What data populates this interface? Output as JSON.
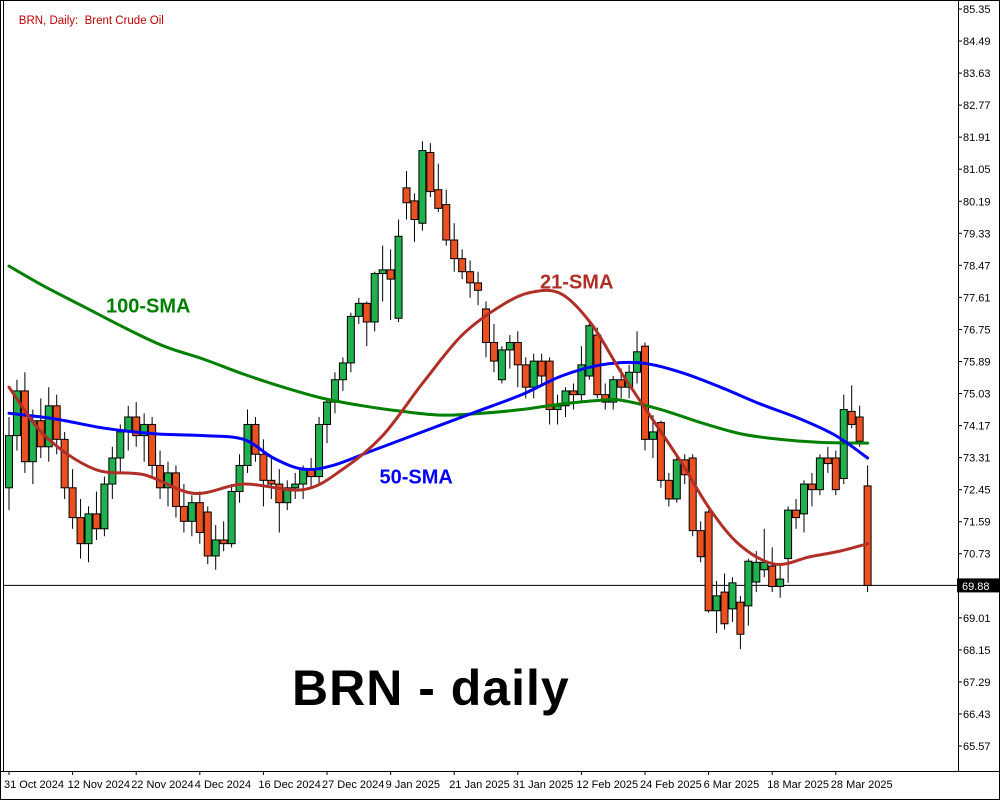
{
  "header": {
    "title": "BRN, Daily:  Brent Crude Oil",
    "title_color": "#c00000"
  },
  "chart_data": {
    "type": "candlestick",
    "symbol": "BRN",
    "timeframe": "Daily",
    "description": "Brent Crude Oil",
    "watermark": "BRN - daily",
    "grid": false,
    "current_price": "69.88",
    "current_price_value": 69.88,
    "y_axis_range": [
      65.57,
      85.35
    ],
    "y_ticks": [
      "85.35",
      "84.49",
      "83.63",
      "82.77",
      "81.91",
      "81.05",
      "80.19",
      "79.33",
      "78.47",
      "77.61",
      "76.75",
      "75.89",
      "75.03",
      "74.17",
      "73.31",
      "72.45",
      "71.59",
      "70.73",
      "69.01",
      "68.15",
      "67.29",
      "66.43",
      "65.57"
    ],
    "x_ticks": [
      {
        "i": 0,
        "label": "31 Oct 2024"
      },
      {
        "i": 8,
        "label": "12 Nov 2024"
      },
      {
        "i": 16,
        "label": "22 Nov 2024"
      },
      {
        "i": 24,
        "label": "4 Dec 2024"
      },
      {
        "i": 32,
        "label": "16 Dec 2024"
      },
      {
        "i": 40,
        "label": "27 Dec 2024"
      },
      {
        "i": 48,
        "label": "9 Jan 2025"
      },
      {
        "i": 56,
        "label": "21 Jan 2025"
      },
      {
        "i": 64,
        "label": "31 Jan 2025"
      },
      {
        "i": 72,
        "label": "12 Feb 2025"
      },
      {
        "i": 80,
        "label": "24 Feb 2025"
      },
      {
        "i": 88,
        "label": "6 Mar 2025"
      },
      {
        "i": 96,
        "label": "18 Mar 2025"
      },
      {
        "i": 104,
        "label": "28 Mar 2025"
      }
    ],
    "colors": {
      "up": "#20b14e",
      "down": "#ea5020",
      "wick": "#000000",
      "axis": "#000000",
      "bid_line": "#000000",
      "bid_label_bg": "#000000",
      "bid_label_text": "#ffffff"
    },
    "candles": [
      [
        72.5,
        74.4,
        71.9,
        73.9
      ],
      [
        73.9,
        75.4,
        73.5,
        75.1
      ],
      [
        75.1,
        75.6,
        72.9,
        73.2
      ],
      [
        73.2,
        74.6,
        72.6,
        74.3
      ],
      [
        74.3,
        74.9,
        73.3,
        73.6
      ],
      [
        73.6,
        75.2,
        73.2,
        74.7
      ],
      [
        74.7,
        75.0,
        73.4,
        73.8
      ],
      [
        73.8,
        74.0,
        72.2,
        72.5
      ],
      [
        72.5,
        73.0,
        71.4,
        71.7
      ],
      [
        71.7,
        72.2,
        70.6,
        71.0
      ],
      [
        71.0,
        72.0,
        70.5,
        71.8
      ],
      [
        71.8,
        72.4,
        71.1,
        71.4
      ],
      [
        71.4,
        72.8,
        71.2,
        72.6
      ],
      [
        72.6,
        73.6,
        72.2,
        73.3
      ],
      [
        73.3,
        74.2,
        72.9,
        74.0
      ],
      [
        74.0,
        74.7,
        73.5,
        74.4
      ],
      [
        74.4,
        74.8,
        73.6,
        73.9
      ],
      [
        73.9,
        74.5,
        73.2,
        74.2
      ],
      [
        74.2,
        74.4,
        72.8,
        73.1
      ],
      [
        73.1,
        73.5,
        72.2,
        72.5
      ],
      [
        72.5,
        73.2,
        72.0,
        72.9
      ],
      [
        72.9,
        73.1,
        71.7,
        72.0
      ],
      [
        72.0,
        72.6,
        71.3,
        71.6
      ],
      [
        71.6,
        72.3,
        71.2,
        72.1
      ],
      [
        72.1,
        72.4,
        71.0,
        71.3
      ],
      [
        71.85,
        72.0,
        70.45,
        70.67
      ],
      [
        70.67,
        71.5,
        70.3,
        71.1
      ],
      [
        71.1,
        71.6,
        70.8,
        71.0
      ],
      [
        71.0,
        72.6,
        70.9,
        72.4
      ],
      [
        72.4,
        73.4,
        72.1,
        73.1
      ],
      [
        73.1,
        74.6,
        72.9,
        74.2
      ],
      [
        74.2,
        74.4,
        73.2,
        73.4
      ],
      [
        73.4,
        73.8,
        72.0,
        72.7
      ],
      [
        72.7,
        73.3,
        72.2,
        72.6
      ],
      [
        72.6,
        73.0,
        71.3,
        72.1
      ],
      [
        72.1,
        72.7,
        71.9,
        72.5
      ],
      [
        72.5,
        72.9,
        72.2,
        72.6
      ],
      [
        72.6,
        73.1,
        72.2,
        73.0
      ],
      [
        73.0,
        73.3,
        72.5,
        72.8
      ],
      [
        72.8,
        74.4,
        72.6,
        74.2
      ],
      [
        74.2,
        74.9,
        73.7,
        74.8
      ],
      [
        74.8,
        75.6,
        74.5,
        75.4
      ],
      [
        75.4,
        76.0,
        75.1,
        75.85
      ],
      [
        75.85,
        77.2,
        75.6,
        77.1
      ],
      [
        77.1,
        77.6,
        76.9,
        77.45
      ],
      [
        77.45,
        77.5,
        76.3,
        76.95
      ],
      [
        76.95,
        78.3,
        76.7,
        78.25
      ],
      [
        78.25,
        79.0,
        77.5,
        78.35
      ],
      [
        78.35,
        78.9,
        77.0,
        78.1
      ],
      [
        77.05,
        79.7,
        76.95,
        79.25
      ],
      [
        80.55,
        81.0,
        79.7,
        80.15
      ],
      [
        80.2,
        80.4,
        79.1,
        79.7
      ],
      [
        79.6,
        81.8,
        79.4,
        81.55
      ],
      [
        81.5,
        81.75,
        80.3,
        80.45
      ],
      [
        80.5,
        81.2,
        79.9,
        80.0
      ],
      [
        80.1,
        80.5,
        79.0,
        79.15
      ],
      [
        79.15,
        79.6,
        78.3,
        78.65
      ],
      [
        78.65,
        78.9,
        78.1,
        78.3
      ],
      [
        78.3,
        78.6,
        77.6,
        78.0
      ],
      [
        78.0,
        78.3,
        77.4,
        77.8
      ],
      [
        77.3,
        77.5,
        76.0,
        76.4
      ],
      [
        76.4,
        76.9,
        75.6,
        75.9
      ],
      [
        75.4,
        76.3,
        75.3,
        76.2
      ],
      [
        76.2,
        76.6,
        75.7,
        76.4
      ],
      [
        76.4,
        76.7,
        75.2,
        75.8
      ],
      [
        75.8,
        76.0,
        74.9,
        75.2
      ],
      [
        75.2,
        76.1,
        74.9,
        75.9
      ],
      [
        75.9,
        76.1,
        75.3,
        75.5
      ],
      [
        75.9,
        76.0,
        74.2,
        74.6
      ],
      [
        74.6,
        75.0,
        74.2,
        74.7
      ],
      [
        74.7,
        75.2,
        74.4,
        75.1
      ],
      [
        75.1,
        75.3,
        74.6,
        75.0
      ],
      [
        75.0,
        76.3,
        74.8,
        75.8
      ],
      [
        75.5,
        77.0,
        75.4,
        76.85
      ],
      [
        76.6,
        76.8,
        74.9,
        75.0
      ],
      [
        75.0,
        75.3,
        74.6,
        74.8
      ],
      [
        74.8,
        75.5,
        74.6,
        75.4
      ],
      [
        75.4,
        75.7,
        74.9,
        75.2
      ],
      [
        75.2,
        75.8,
        74.9,
        75.6
      ],
      [
        75.6,
        76.7,
        75.3,
        76.15
      ],
      [
        76.3,
        76.4,
        73.5,
        73.8
      ],
      [
        73.8,
        74.45,
        73.3,
        74.0
      ],
      [
        74.25,
        74.3,
        72.5,
        72.7
      ],
      [
        72.7,
        72.9,
        72.0,
        72.2
      ],
      [
        72.2,
        73.4,
        72.1,
        73.25
      ],
      [
        73.25,
        73.4,
        72.6,
        72.85
      ],
      [
        73.3,
        73.4,
        71.2,
        71.35
      ],
      [
        71.35,
        71.6,
        70.5,
        70.65
      ],
      [
        71.85,
        71.9,
        69.15,
        69.2
      ],
      [
        69.2,
        70.0,
        68.6,
        69.6
      ],
      [
        69.7,
        70.2,
        68.7,
        68.85
      ],
      [
        69.25,
        70.1,
        68.9,
        69.95
      ],
      [
        69.43,
        69.6,
        68.17,
        68.57
      ],
      [
        69.33,
        70.6,
        68.8,
        70.53
      ],
      [
        69.97,
        70.8,
        69.7,
        70.5
      ],
      [
        70.3,
        71.4,
        70.1,
        70.5
      ],
      [
        70.4,
        70.9,
        69.7,
        69.85
      ],
      [
        69.85,
        70.45,
        69.55,
        70.05
      ],
      [
        70.6,
        72.0,
        69.95,
        71.9
      ],
      [
        71.9,
        72.2,
        71.4,
        71.7
      ],
      [
        71.8,
        72.7,
        71.3,
        72.6
      ],
      [
        72.6,
        72.9,
        72.0,
        72.45
      ],
      [
        72.45,
        73.4,
        72.3,
        73.3
      ],
      [
        73.3,
        73.6,
        72.9,
        73.15
      ],
      [
        73.3,
        73.5,
        72.3,
        72.45
      ],
      [
        72.75,
        75.0,
        72.6,
        74.6
      ],
      [
        74.55,
        75.25,
        74.1,
        74.2
      ],
      [
        74.4,
        74.7,
        73.6,
        73.75
      ],
      [
        72.55,
        73.1,
        69.7,
        69.88
      ]
    ],
    "overlays": [
      {
        "name": "100-SMA",
        "color": "#008000",
        "label_anchor": [
          12.2,
          77.2
        ],
        "points": [
          [
            0,
            78.45
          ],
          [
            4.5,
            77.9
          ],
          [
            9.5,
            77.35
          ],
          [
            14.5,
            76.8
          ],
          [
            19.5,
            76.3
          ],
          [
            24.5,
            75.95
          ],
          [
            29.5,
            75.55
          ],
          [
            34.5,
            75.2
          ],
          [
            39.5,
            74.9
          ],
          [
            44.5,
            74.7
          ],
          [
            49.5,
            74.55
          ],
          [
            54.5,
            74.45
          ],
          [
            59.5,
            74.5
          ],
          [
            64.5,
            74.6
          ],
          [
            69.5,
            74.75
          ],
          [
            74.5,
            74.85
          ],
          [
            77,
            74.85
          ],
          [
            82,
            74.6
          ],
          [
            87,
            74.25
          ],
          [
            92,
            73.95
          ],
          [
            97,
            73.8
          ],
          [
            102,
            73.72
          ],
          [
            108,
            73.7
          ]
        ]
      },
      {
        "name": "50-SMA",
        "color": "#0000ff",
        "label_anchor": [
          46.6,
          72.62
        ],
        "points": [
          [
            0,
            74.5
          ],
          [
            5.75,
            74.35
          ],
          [
            12,
            74.1
          ],
          [
            18.25,
            73.95
          ],
          [
            24.5,
            73.9
          ],
          [
            29.5,
            73.8
          ],
          [
            33.25,
            73.3
          ],
          [
            37,
            73.0
          ],
          [
            40.75,
            73.1
          ],
          [
            45.75,
            73.5
          ],
          [
            52,
            74.0
          ],
          [
            58.25,
            74.5
          ],
          [
            64.5,
            75.0
          ],
          [
            69.5,
            75.5
          ],
          [
            74.5,
            75.8
          ],
          [
            79.5,
            75.85
          ],
          [
            84.5,
            75.6
          ],
          [
            89.5,
            75.2
          ],
          [
            94.5,
            74.75
          ],
          [
            99.5,
            74.35
          ],
          [
            104,
            73.9
          ],
          [
            108,
            73.3
          ]
        ]
      },
      {
        "name": "21-SMA",
        "color": "#b03028",
        "label_anchor": [
          66.8,
          77.85
        ],
        "points": [
          [
            0,
            75.2
          ],
          [
            4.5,
            73.9
          ],
          [
            10.75,
            73.0
          ],
          [
            17,
            72.85
          ],
          [
            23.25,
            72.35
          ],
          [
            29.5,
            72.6
          ],
          [
            37,
            72.45
          ],
          [
            42,
            73.0
          ],
          [
            47,
            73.9
          ],
          [
            52,
            75.3
          ],
          [
            57,
            76.6
          ],
          [
            62,
            77.4
          ],
          [
            65.75,
            77.75
          ],
          [
            69.5,
            77.7
          ],
          [
            73.25,
            76.9
          ],
          [
            77,
            75.6
          ],
          [
            80.75,
            74.4
          ],
          [
            84.5,
            73.2
          ],
          [
            88.25,
            71.9
          ],
          [
            92,
            70.95
          ],
          [
            96.4,
            70.45
          ],
          [
            100.75,
            70.65
          ],
          [
            104.5,
            70.8
          ],
          [
            108,
            71.0
          ]
        ]
      }
    ]
  }
}
